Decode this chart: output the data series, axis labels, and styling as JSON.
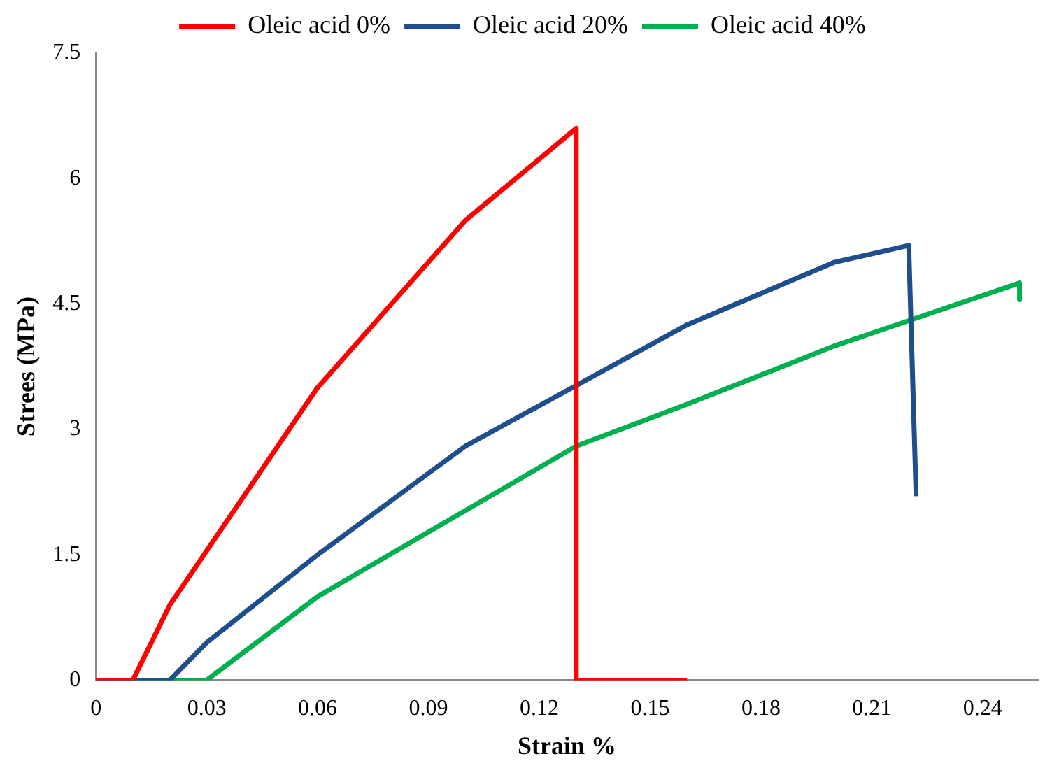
{
  "chart_data": {
    "type": "line",
    "xlabel": "Strain %",
    "ylabel": "Strees (MPa)",
    "xlim": [
      0,
      0.255
    ],
    "xticks": [
      0,
      0.03,
      0.06,
      0.09,
      0.12,
      0.15,
      0.18,
      0.21,
      0.24
    ],
    "ylim": [
      0,
      7.5
    ],
    "yticks": [
      0,
      1.5,
      3,
      4.5,
      6,
      7.5
    ],
    "grid": false,
    "legend": "top",
    "marker": "none",
    "line_style": "solid",
    "series": [
      {
        "name": "Oleic acid 0%",
        "color": "#ff0000",
        "x": [
          0,
          0.01,
          0.02,
          0.06,
          0.1,
          0.13,
          0.13,
          0.16
        ],
        "values": [
          0,
          0,
          0.9,
          3.5,
          5.5,
          6.6,
          0,
          0
        ]
      },
      {
        "name": "Oleic acid 20%",
        "color": "#1f4e8c",
        "x": [
          0,
          0.02,
          0.03,
          0.06,
          0.1,
          0.16,
          0.2,
          0.22,
          0.222
        ],
        "values": [
          0,
          0,
          0.45,
          1.5,
          2.8,
          4.25,
          5,
          5.2,
          2.2
        ]
      },
      {
        "name": "Oleic acid 40%",
        "color": "#00b050",
        "x": [
          0,
          0.03,
          0.06,
          0.13,
          0.16,
          0.2,
          0.25,
          0.25
        ],
        "values": [
          0,
          0,
          1,
          2.8,
          3.3,
          4,
          4.75,
          4.55
        ]
      }
    ]
  }
}
